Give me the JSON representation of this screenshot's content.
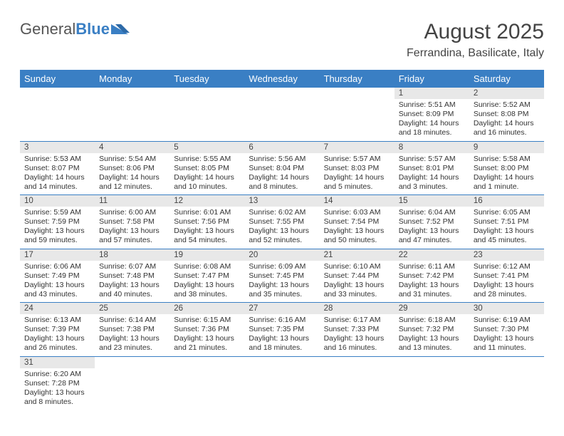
{
  "logo": {
    "part1": "General",
    "part2": "Blue"
  },
  "title": "August 2025",
  "location": "Ferrandina, Basilicate, Italy",
  "colors": {
    "header_bg": "#3a7fc4",
    "header_text": "#ffffff",
    "daynum_bg": "#e8e8e8",
    "row_border": "#3a7fc4",
    "text": "#333333",
    "logo_gray": "#555555",
    "logo_blue": "#3a7fc4"
  },
  "dayHeaders": [
    "Sunday",
    "Monday",
    "Tuesday",
    "Wednesday",
    "Thursday",
    "Friday",
    "Saturday"
  ],
  "weeks": [
    [
      null,
      null,
      null,
      null,
      null,
      {
        "n": "1",
        "sr": "5:51 AM",
        "ss": "8:09 PM",
        "dl": "14 hours and 18 minutes."
      },
      {
        "n": "2",
        "sr": "5:52 AM",
        "ss": "8:08 PM",
        "dl": "14 hours and 16 minutes."
      }
    ],
    [
      {
        "n": "3",
        "sr": "5:53 AM",
        "ss": "8:07 PM",
        "dl": "14 hours and 14 minutes."
      },
      {
        "n": "4",
        "sr": "5:54 AM",
        "ss": "8:06 PM",
        "dl": "14 hours and 12 minutes."
      },
      {
        "n": "5",
        "sr": "5:55 AM",
        "ss": "8:05 PM",
        "dl": "14 hours and 10 minutes."
      },
      {
        "n": "6",
        "sr": "5:56 AM",
        "ss": "8:04 PM",
        "dl": "14 hours and 8 minutes."
      },
      {
        "n": "7",
        "sr": "5:57 AM",
        "ss": "8:03 PM",
        "dl": "14 hours and 5 minutes."
      },
      {
        "n": "8",
        "sr": "5:57 AM",
        "ss": "8:01 PM",
        "dl": "14 hours and 3 minutes."
      },
      {
        "n": "9",
        "sr": "5:58 AM",
        "ss": "8:00 PM",
        "dl": "14 hours and 1 minute."
      }
    ],
    [
      {
        "n": "10",
        "sr": "5:59 AM",
        "ss": "7:59 PM",
        "dl": "13 hours and 59 minutes."
      },
      {
        "n": "11",
        "sr": "6:00 AM",
        "ss": "7:58 PM",
        "dl": "13 hours and 57 minutes."
      },
      {
        "n": "12",
        "sr": "6:01 AM",
        "ss": "7:56 PM",
        "dl": "13 hours and 54 minutes."
      },
      {
        "n": "13",
        "sr": "6:02 AM",
        "ss": "7:55 PM",
        "dl": "13 hours and 52 minutes."
      },
      {
        "n": "14",
        "sr": "6:03 AM",
        "ss": "7:54 PM",
        "dl": "13 hours and 50 minutes."
      },
      {
        "n": "15",
        "sr": "6:04 AM",
        "ss": "7:52 PM",
        "dl": "13 hours and 47 minutes."
      },
      {
        "n": "16",
        "sr": "6:05 AM",
        "ss": "7:51 PM",
        "dl": "13 hours and 45 minutes."
      }
    ],
    [
      {
        "n": "17",
        "sr": "6:06 AM",
        "ss": "7:49 PM",
        "dl": "13 hours and 43 minutes."
      },
      {
        "n": "18",
        "sr": "6:07 AM",
        "ss": "7:48 PM",
        "dl": "13 hours and 40 minutes."
      },
      {
        "n": "19",
        "sr": "6:08 AM",
        "ss": "7:47 PM",
        "dl": "13 hours and 38 minutes."
      },
      {
        "n": "20",
        "sr": "6:09 AM",
        "ss": "7:45 PM",
        "dl": "13 hours and 35 minutes."
      },
      {
        "n": "21",
        "sr": "6:10 AM",
        "ss": "7:44 PM",
        "dl": "13 hours and 33 minutes."
      },
      {
        "n": "22",
        "sr": "6:11 AM",
        "ss": "7:42 PM",
        "dl": "13 hours and 31 minutes."
      },
      {
        "n": "23",
        "sr": "6:12 AM",
        "ss": "7:41 PM",
        "dl": "13 hours and 28 minutes."
      }
    ],
    [
      {
        "n": "24",
        "sr": "6:13 AM",
        "ss": "7:39 PM",
        "dl": "13 hours and 26 minutes."
      },
      {
        "n": "25",
        "sr": "6:14 AM",
        "ss": "7:38 PM",
        "dl": "13 hours and 23 minutes."
      },
      {
        "n": "26",
        "sr": "6:15 AM",
        "ss": "7:36 PM",
        "dl": "13 hours and 21 minutes."
      },
      {
        "n": "27",
        "sr": "6:16 AM",
        "ss": "7:35 PM",
        "dl": "13 hours and 18 minutes."
      },
      {
        "n": "28",
        "sr": "6:17 AM",
        "ss": "7:33 PM",
        "dl": "13 hours and 16 minutes."
      },
      {
        "n": "29",
        "sr": "6:18 AM",
        "ss": "7:32 PM",
        "dl": "13 hours and 13 minutes."
      },
      {
        "n": "30",
        "sr": "6:19 AM",
        "ss": "7:30 PM",
        "dl": "13 hours and 11 minutes."
      }
    ],
    [
      {
        "n": "31",
        "sr": "6:20 AM",
        "ss": "7:28 PM",
        "dl": "13 hours and 8 minutes."
      },
      null,
      null,
      null,
      null,
      null,
      null
    ]
  ],
  "labels": {
    "sunrise": "Sunrise: ",
    "sunset": "Sunset: ",
    "daylight": "Daylight: "
  }
}
